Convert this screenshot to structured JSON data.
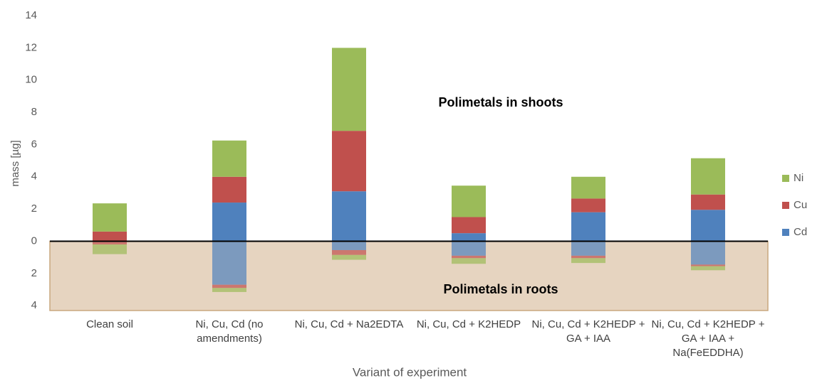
{
  "chart_data": {
    "type": "stacked_bar",
    "y_label": "mass [µg]",
    "x_label": "Variant of experiment",
    "annotations": [
      "Polimetals in shoots",
      "Polimetals in roots"
    ],
    "categories": [
      "Clean soil",
      "Ni, Cu, Cd (no amendments)",
      "Ni, Cu, Cd + Na2EDTA",
      "Ni, Cu, Cd + K2HEDP",
      "Ni, Cu, Cd + K2HEDP + GA + IAA",
      "Ni, Cu, Cd + K2HEDP + GA + IAA + Na(FeEDDHA)"
    ],
    "series": [
      {
        "name": "Ni",
        "color": "#9bbb59",
        "values": [
          1.75,
          2.25,
          5.15,
          1.95,
          1.35,
          2.25
        ],
        "root_values": [
          -0.6,
          -0.25,
          -0.3,
          -0.35,
          -0.3,
          -0.25
        ]
      },
      {
        "name": "Cu",
        "color": "#c0504d",
        "values": [
          0.6,
          1.6,
          3.75,
          1.0,
          0.85,
          0.95
        ],
        "root_values": [
          -0.2,
          -0.2,
          -0.3,
          -0.15,
          -0.15,
          -0.1
        ]
      },
      {
        "name": "Cd",
        "color": "#4f81bd",
        "values": [
          0,
          2.4,
          3.1,
          0.5,
          1.8,
          1.95
        ],
        "root_values": [
          0,
          -2.7,
          -0.55,
          -0.9,
          -0.9,
          -1.45
        ]
      }
    ],
    "ylim": [
      -4.3,
      14
    ],
    "yticks": [
      {
        "value": -4,
        "label": "4"
      },
      {
        "value": -2,
        "label": "2"
      },
      0,
      2,
      4,
      6,
      8,
      10,
      12,
      14
    ],
    "legend": "right"
  }
}
